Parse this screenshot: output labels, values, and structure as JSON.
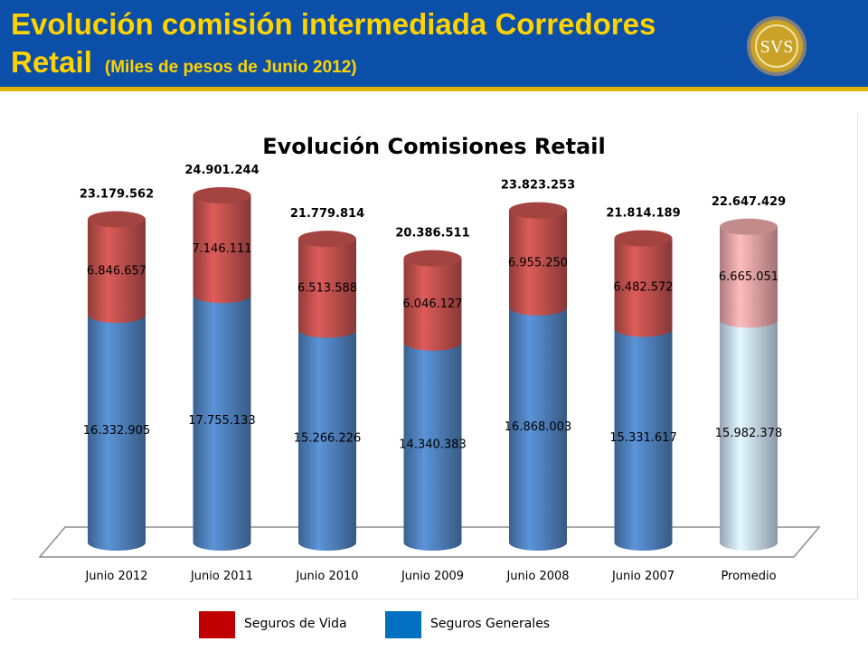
{
  "slide": {
    "title_line1": "Evolución comisión intermediada Corredores",
    "title_line2": "Retail",
    "title_subtitle": "(Miles de pesos de Junio 2012)",
    "logo_text": "SVS"
  },
  "legend": {
    "items": [
      {
        "label": "Seguros de Vida",
        "color": "#c00000"
      },
      {
        "label": "Seguros Generales",
        "color": "#0070c0"
      }
    ]
  },
  "colors": {
    "header_bg": "#0b4fa8",
    "title_text": "#ffd200",
    "vida": "#c0504d",
    "generales": "#4f81bd",
    "promedio_vida": "#e6a3a5",
    "promedio_generales": "#c6d9f1"
  },
  "chart_data": {
    "type": "bar",
    "stacked": true,
    "style": "3d-cylinder",
    "title": "Evolución Comisiones Retail",
    "categories": [
      "Junio 2012",
      "Junio 2011",
      "Junio 2010",
      "Junio 2009",
      "Junio 2008",
      "Junio 2007",
      "Promedio"
    ],
    "series": [
      {
        "name": "Seguros Generales",
        "values": [
          16332905,
          17755133,
          15266226,
          14340383,
          16868003,
          15331617,
          15982378
        ],
        "labels": [
          "16.332.905",
          "17.755.133",
          "15.266.226",
          "14.340.383",
          "16.868.003",
          "15.331.617",
          "15.982.378"
        ]
      },
      {
        "name": "Seguros de Vida",
        "values": [
          6846657,
          7146111,
          6513588,
          6046127,
          6955250,
          6482572,
          6665051
        ],
        "labels": [
          "6.846.657",
          "7.146.111",
          "6.513.588",
          "6.046.127",
          "6.955.250",
          "6.482.572",
          "6.665.051"
        ]
      }
    ],
    "totals": [
      23179562,
      24901244,
      21779814,
      20386511,
      23823253,
      21814189,
      22647429
    ],
    "total_labels": [
      "23.179.562",
      "24.901.244",
      "21.779.814",
      "20.386.511",
      "23.823.253",
      "21.814.189",
      "22.647.429"
    ],
    "ylim": [
      0,
      24901244
    ],
    "grid": false,
    "y_axis_visible": false
  }
}
